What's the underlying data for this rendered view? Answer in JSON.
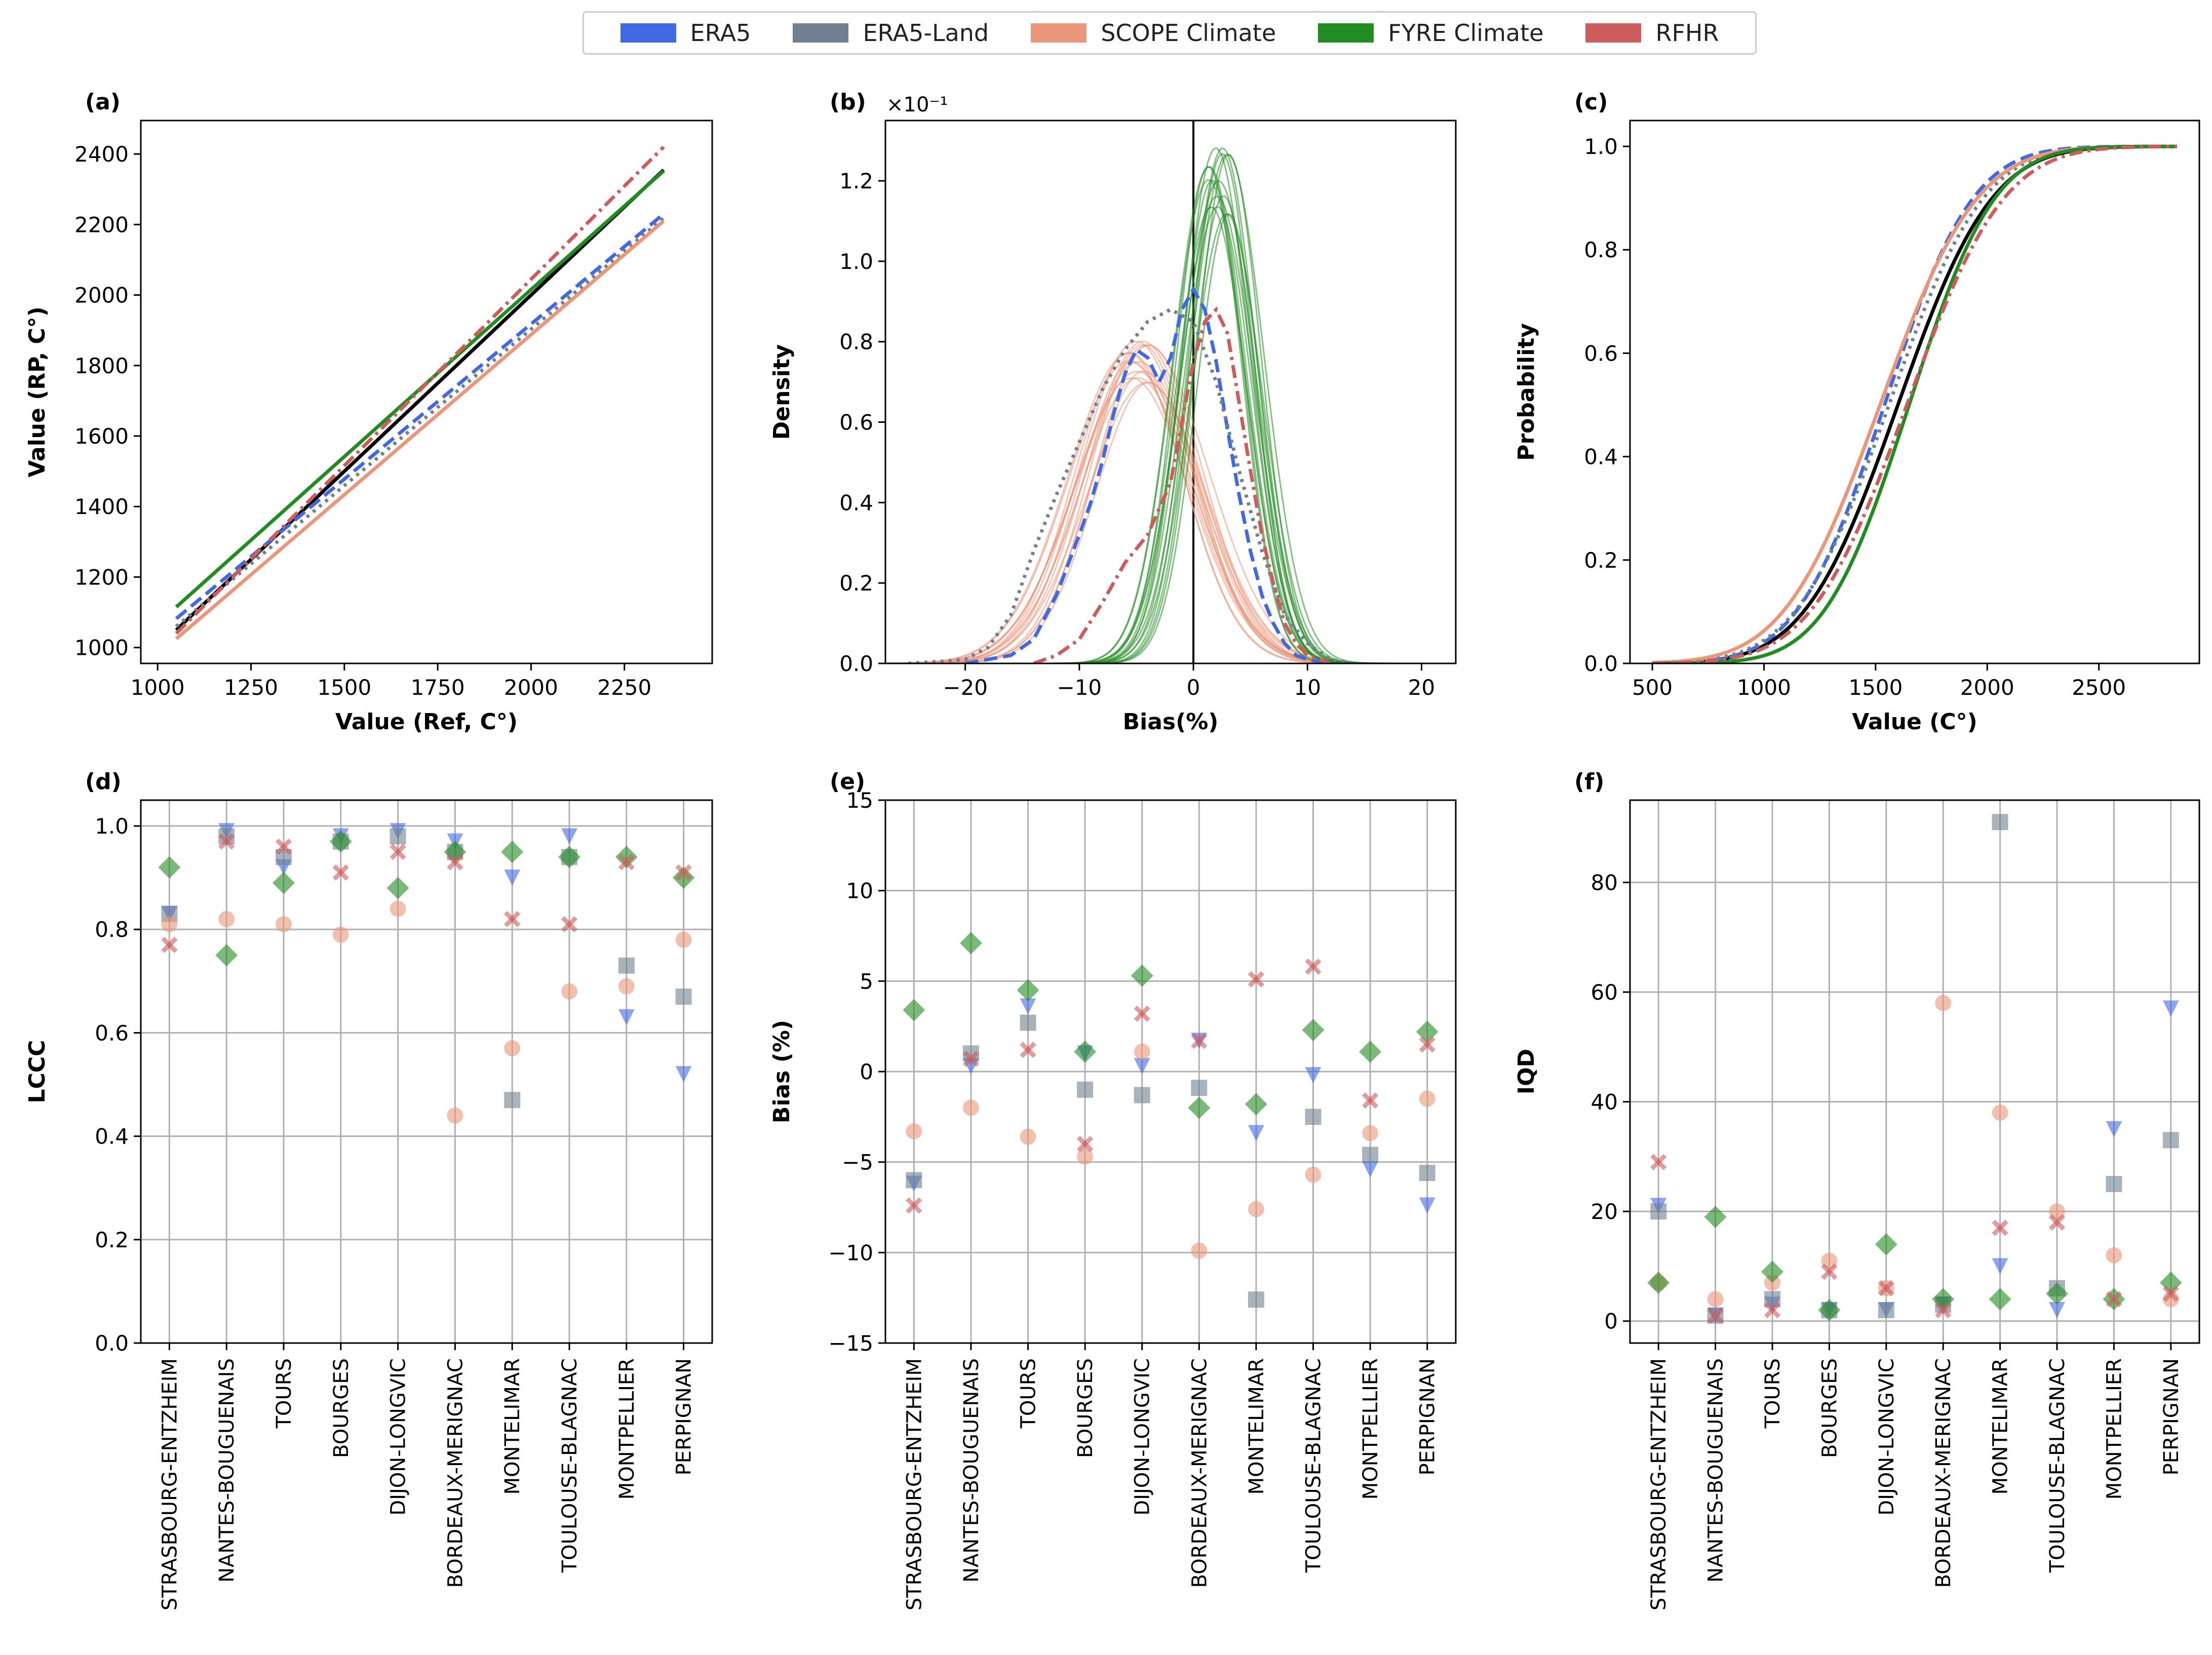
{
  "colors": {
    "era5": "#4169E1",
    "era5land": "#708090",
    "scope": "#E9967A",
    "fyre": "#228B22",
    "rfhr": "#CD5C5C",
    "ref": "#000000"
  },
  "legend": [
    {
      "label": "ERA5",
      "color": "#4169E1"
    },
    {
      "label": "ERA5-Land",
      "color": "#708090"
    },
    {
      "label": "SCOPE Climate",
      "color": "#E9967A"
    },
    {
      "label": "FYRE Climate",
      "color": "#228B22"
    },
    {
      "label": "RFHR",
      "color": "#CD5C5C"
    }
  ],
  "chart_data": [
    {
      "id": "a",
      "panel_label": "(a)",
      "type": "line",
      "xlabel": "Value (Ref, C°)",
      "ylabel": "Value (RP, C°)",
      "xlim": [
        955,
        2485
      ],
      "ylim": [
        955,
        2495
      ],
      "xticks": [
        1000,
        1250,
        1500,
        1750,
        2000,
        2250
      ],
      "yticks": [
        1000,
        1200,
        1400,
        1600,
        1800,
        2000,
        2200,
        2400
      ],
      "series": [
        {
          "name": "ref",
          "style": "solid",
          "color": "#000000",
          "x": [
            1050,
            2355
          ],
          "y": [
            1050,
            2355
          ]
        },
        {
          "name": "ERA5",
          "style": "dashed",
          "color": "#4169E1",
          "x": [
            1050,
            2355
          ],
          "y": [
            1082,
            2230
          ]
        },
        {
          "name": "ERA5-Land",
          "style": "dotted",
          "color": "#708090",
          "x": [
            1050,
            2355
          ],
          "y": [
            1060,
            2218
          ]
        },
        {
          "name": "FYRE Climate",
          "style": "solid",
          "color": "#228B22",
          "x": [
            1050,
            2355
          ],
          "y": [
            1115,
            2352
          ]
        },
        {
          "name": "RFHR",
          "style": "dashdot",
          "color": "#CD5C5C",
          "x": [
            1050,
            2355
          ],
          "y": [
            1040,
            2420
          ]
        },
        {
          "name": "SCOPE Climate",
          "style": "solid",
          "color": "#E9967A",
          "x": [
            1050,
            2355
          ],
          "y": [
            1025,
            2210
          ]
        }
      ]
    },
    {
      "id": "b",
      "panel_label": "(b)",
      "type": "line",
      "xlabel": "Bias(%)",
      "ylabel": "Density",
      "offset_text": "×10⁻¹",
      "xlim": [
        -27,
        23
      ],
      "ylim": [
        0,
        1.35
      ],
      "xticks": [
        -20,
        -10,
        0,
        10,
        20
      ],
      "yticks": [
        0.0,
        0.2,
        0.4,
        0.6,
        0.8,
        1.0,
        1.2
      ],
      "vline": 0,
      "series": [
        {
          "name": "SCOPE Climate",
          "kind": "gaussian_ensemble",
          "color": "#E9967A",
          "mu": -4.8,
          "sigma": 5.0,
          "amp": 0.75,
          "members": 16
        },
        {
          "name": "FYRE Climate",
          "kind": "gaussian_ensemble",
          "color": "#228B22",
          "mu": 2.2,
          "sigma": 3.0,
          "amp": 1.2,
          "members": 16
        },
        {
          "name": "ERA5",
          "style": "dashed",
          "color": "#4169E1",
          "x": [
            -20,
            -16,
            -14,
            -12,
            -10,
            -9,
            -8,
            -7,
            -6,
            -5,
            -4,
            -3,
            -2,
            -1,
            0,
            1,
            2,
            3,
            4,
            5,
            6,
            7,
            8,
            9,
            10,
            12
          ],
          "y": [
            0,
            0.02,
            0.06,
            0.17,
            0.32,
            0.4,
            0.5,
            0.62,
            0.72,
            0.78,
            0.76,
            0.7,
            0.76,
            0.88,
            0.93,
            0.88,
            0.75,
            0.58,
            0.42,
            0.28,
            0.17,
            0.1,
            0.05,
            0.02,
            0.01,
            0
          ]
        },
        {
          "name": "ERA5-Land",
          "style": "dotted",
          "color": "#708090",
          "x": [
            -25,
            -22,
            -20,
            -18,
            -16,
            -14,
            -12,
            -10,
            -8,
            -6,
            -4,
            -2,
            0,
            2,
            4,
            6,
            8,
            10,
            12,
            14
          ],
          "y": [
            0,
            0.005,
            0.01,
            0.04,
            0.12,
            0.28,
            0.42,
            0.55,
            0.68,
            0.78,
            0.85,
            0.88,
            0.85,
            0.7,
            0.48,
            0.28,
            0.12,
            0.05,
            0.01,
            0
          ]
        },
        {
          "name": "RFHR",
          "style": "dashdot",
          "color": "#CD5C5C",
          "x": [
            -14,
            -12,
            -10,
            -8,
            -6,
            -4,
            -2,
            0,
            1,
            2,
            3,
            4,
            5,
            6,
            7,
            8,
            9,
            10,
            12
          ],
          "y": [
            0,
            0.02,
            0.06,
            0.15,
            0.25,
            0.32,
            0.45,
            0.75,
            0.85,
            0.88,
            0.82,
            0.65,
            0.48,
            0.32,
            0.2,
            0.1,
            0.05,
            0.02,
            0
          ]
        }
      ]
    },
    {
      "id": "c",
      "panel_label": "(c)",
      "type": "line",
      "xlabel": "Value (C°)",
      "ylabel": "Probability",
      "xlim": [
        400,
        2950
      ],
      "ylim": [
        0,
        1.05
      ],
      "xticks": [
        500,
        1000,
        1500,
        2000,
        2500
      ],
      "yticks": [
        0.0,
        0.2,
        0.4,
        0.6,
        0.8,
        1.0
      ],
      "series": [
        {
          "name": "ref",
          "style": "solid",
          "color": "#000000",
          "mu": 1600,
          "sigma": 330
        },
        {
          "name": "ERA5",
          "style": "dashed",
          "color": "#4169E1",
          "mu": 1540,
          "sigma": 310
        },
        {
          "name": "ERA5-Land",
          "style": "dotted",
          "color": "#708090",
          "mu": 1560,
          "sigma": 330
        },
        {
          "name": "SCOPE Climate",
          "style": "solid",
          "color": "#E9967A",
          "mu": 1520,
          "sigma": 340
        },
        {
          "name": "FYRE Climate",
          "style": "solid",
          "color": "#228B22",
          "mu": 1650,
          "sigma": 300
        },
        {
          "name": "RFHR",
          "style": "dashdot",
          "color": "#CD5C5C",
          "mu": 1640,
          "sigma": 340
        }
      ]
    },
    {
      "id": "d",
      "panel_label": "(d)",
      "type": "scatter",
      "ylabel": "LCCC",
      "ylim": [
        0.0,
        1.05
      ],
      "yticks": [
        0.0,
        0.2,
        0.4,
        0.6,
        0.8,
        1.0
      ],
      "categories": [
        "STRASBOURG-ENTZHEIM",
        "NANTES-BOUGUENAIS",
        "TOURS",
        "BOURGES",
        "DIJON-LONGVIC",
        "BORDEAUX-MERIGNAC",
        "MONTELIMAR",
        "TOULOUSE-BLAGNAC",
        "MONTPELLIER",
        "PERPIGNAN"
      ],
      "series": [
        {
          "name": "ERA5",
          "marker": "triangle",
          "color": "#4169E1",
          "values": [
            0.83,
            0.99,
            0.92,
            0.98,
            0.99,
            0.97,
            0.9,
            0.98,
            0.63,
            0.52
          ]
        },
        {
          "name": "ERA5-Land",
          "marker": "square",
          "color": "#708090",
          "values": [
            0.83,
            0.98,
            0.94,
            0.97,
            0.98,
            0.95,
            0.47,
            0.94,
            0.73,
            0.67
          ]
        },
        {
          "name": "SCOPE Climate",
          "marker": "circle",
          "color": "#E9967A",
          "values": [
            0.81,
            0.82,
            0.81,
            0.79,
            0.84,
            0.44,
            0.57,
            0.68,
            0.69,
            0.78
          ]
        },
        {
          "name": "FYRE Climate",
          "marker": "diamond",
          "color": "#228B22",
          "values": [
            0.92,
            0.75,
            0.89,
            0.97,
            0.88,
            0.95,
            0.95,
            0.94,
            0.94,
            0.9
          ]
        },
        {
          "name": "RFHR",
          "marker": "cross",
          "color": "#CD5C5C",
          "values": [
            0.77,
            0.97,
            0.96,
            0.91,
            0.95,
            0.93,
            0.82,
            0.81,
            0.93,
            0.91
          ]
        }
      ]
    },
    {
      "id": "e",
      "panel_label": "(e)",
      "type": "scatter",
      "ylabel": "Bias (%)",
      "ylim": [
        -15,
        15
      ],
      "yticks": [
        -15,
        -10,
        -5,
        0,
        5,
        10,
        15
      ],
      "categories": [
        "STRASBOURG-ENTZHEIM",
        "NANTES-BOUGUENAIS",
        "TOURS",
        "BOURGES",
        "DIJON-LONGVIC",
        "BORDEAUX-MERIGNAC",
        "MONTELIMAR",
        "TOULOUSE-BLAGNAC",
        "MONTPELLIER",
        "PERPIGNAN"
      ],
      "series": [
        {
          "name": "ERA5",
          "marker": "triangle",
          "color": "#4169E1",
          "values": [
            -6.2,
            0.3,
            3.6,
            1.0,
            0.3,
            1.7,
            -3.4,
            -0.2,
            -5.4,
            -7.4
          ]
        },
        {
          "name": "ERA5-Land",
          "marker": "square",
          "color": "#708090",
          "values": [
            -6.0,
            1.0,
            2.7,
            -1.0,
            -1.3,
            -0.9,
            -12.6,
            -2.5,
            -4.6,
            -5.6
          ]
        },
        {
          "name": "SCOPE Climate",
          "marker": "circle",
          "color": "#E9967A",
          "values": [
            -3.3,
            -2.0,
            -3.6,
            -4.7,
            1.1,
            -9.9,
            -7.6,
            -5.7,
            -3.4,
            -1.5
          ]
        },
        {
          "name": "FYRE Climate",
          "marker": "diamond",
          "color": "#228B22",
          "values": [
            3.4,
            7.1,
            4.5,
            1.1,
            5.3,
            -2.0,
            -1.8,
            2.3,
            1.1,
            2.2
          ]
        },
        {
          "name": "RFHR",
          "marker": "cross",
          "color": "#CD5C5C",
          "values": [
            -7.4,
            0.7,
            1.2,
            -4.0,
            3.2,
            1.7,
            5.1,
            5.8,
            -1.6,
            1.5
          ]
        }
      ]
    },
    {
      "id": "f",
      "panel_label": "(f)",
      "type": "scatter",
      "ylabel": "IQD",
      "ylim": [
        -4,
        95
      ],
      "yticks": [
        0,
        20,
        40,
        60,
        80
      ],
      "categories": [
        "STRASBOURG-ENTZHEIM",
        "NANTES-BOUGUENAIS",
        "TOURS",
        "BOURGES",
        "DIJON-LONGVIC",
        "BORDEAUX-MERIGNAC",
        "MONTELIMAR",
        "TOULOUSE-BLAGNAC",
        "MONTPELLIER",
        "PERPIGNAN"
      ],
      "series": [
        {
          "name": "ERA5",
          "marker": "triangle",
          "color": "#4169E1",
          "values": [
            21,
            1,
            3,
            2,
            2,
            3,
            10,
            2,
            35,
            57
          ]
        },
        {
          "name": "ERA5-Land",
          "marker": "square",
          "color": "#708090",
          "values": [
            20,
            1,
            4,
            2,
            2,
            3,
            91,
            6,
            25,
            33
          ]
        },
        {
          "name": "SCOPE Climate",
          "marker": "circle",
          "color": "#E9967A",
          "values": [
            7,
            4,
            7,
            11,
            6,
            58,
            38,
            20,
            12,
            4
          ]
        },
        {
          "name": "FYRE Climate",
          "marker": "diamond",
          "color": "#228B22",
          "values": [
            7,
            19,
            9,
            2,
            14,
            4,
            4,
            5,
            4,
            7
          ]
        },
        {
          "name": "RFHR",
          "marker": "cross",
          "color": "#CD5C5C",
          "values": [
            29,
            1,
            2,
            9,
            6,
            2,
            17,
            18,
            4,
            5
          ]
        }
      ]
    }
  ]
}
